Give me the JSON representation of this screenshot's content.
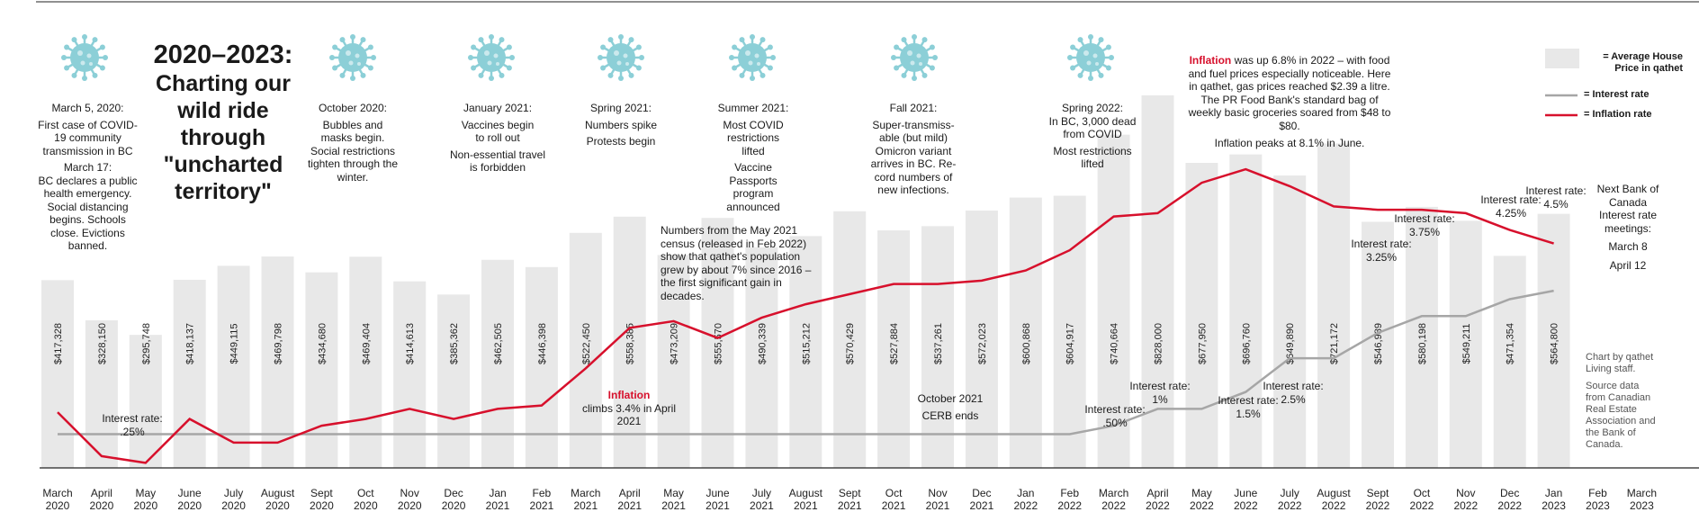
{
  "headline": {
    "line1": "2020–2023:",
    "rest": "Charting our wild ride through \"uncharted territory\""
  },
  "legend": {
    "house": "= Average House Price in qathet",
    "interest": "= Interest rate",
    "inflation": "= Inflation rate"
  },
  "colors": {
    "bar": "#e8e8e8",
    "interest": "#a6a6a6",
    "inflation": "#d7102c",
    "virus": "#8ccfd7"
  },
  "annotations": {
    "march2020a": "March 5, 2020:",
    "march2020b": "First case of COVID-19 community transmission in BC",
    "march2020c": "March 17:",
    "march2020d": "BC declares a public health emergency. Social distancing begins. Schools close. Evictions banned.",
    "oct2020a": "October 2020:",
    "oct2020b": "Bubbles and masks begin. Social restrictions tighten through the winter.",
    "jan2021a": "January 2021:",
    "jan2021b": "Vaccines begin to roll out",
    "jan2021c": "Non-essential travel is forbidden",
    "spring2021a": "Spring 2021:",
    "spring2021b": "Numbers spike",
    "spring2021c": "Protests begin",
    "summer2021a": "Summer 2021:",
    "summer2021b": "Most COVID restrictions lifted",
    "summer2021c": "Vaccine Passports program announced",
    "fall2021a": "Fall 2021:",
    "fall2021b": "Super-transmiss-able (but mild) Omicron variant arrives in BC. Re-cord numbers of new infections.",
    "spring2022a": "Spring 2022:",
    "spring2022b": "In BC, 3,000 dead from COVID",
    "spring2022c": "Most restrictions lifted",
    "census": "Numbers from the May 2021 census (released in Feb 2022) show that qathet's population grew by about 7% since 2016 – the first significant gain in decades.",
    "inflation2021a": "Inflation",
    "inflation2021b": "climbs 3.4% in April 2021",
    "cerb1": "October 2021",
    "cerb2": "CERB ends",
    "inflation2022a": "Inflation",
    "inflation2022b": "was up 6.8% in 2022 – with food and fuel prices especially noticeable. Here in qathet, gas prices reached $2.39 a litre. The PR Food Bank's standard bag of weekly basic groceries soared from $48 to $80.",
    "inflation2022c": "Inflation peaks at 8.1% in June.",
    "nextbank1": "Next Bank of Canada Interest rate meetings:",
    "nextbank2": "March 8",
    "nextbank3": "April 12",
    "credit1": "Chart by qathet Living staff.",
    "credit2": "Source data from Canadian Real Estate Association and the Bank of Canada."
  },
  "interest_labels": [
    {
      "title": "Interest rate:",
      "value": ".25%"
    },
    {
      "title": "Interest rate:",
      "value": ".50%"
    },
    {
      "title": "Interest rate:",
      "value": "1%"
    },
    {
      "title": "Interest rate:",
      "value": "1.5%"
    },
    {
      "title": "Interest rate:",
      "value": "2.5%"
    },
    {
      "title": "Interest rate:",
      "value": "3.25%"
    },
    {
      "title": "Interest rate:",
      "value": "3.75%"
    },
    {
      "title": "Interest rate:",
      "value": "4.25%"
    },
    {
      "title": "Interest rate:",
      "value": "4.5%"
    }
  ],
  "chart_data": {
    "type": "bar",
    "categories": [
      "March 2020",
      "April 2020",
      "May 2020",
      "June 2020",
      "July 2020",
      "August 2020",
      "Sept 2020",
      "Oct 2020",
      "Nov 2020",
      "Dec 2020",
      "Jan 2021",
      "Feb 2021",
      "March 2021",
      "April 2021",
      "May 2021",
      "June 2021",
      "July 2021",
      "August 2021",
      "Sept 2021",
      "Oct 2021",
      "Nov 2021",
      "Dec 2021",
      "Jan 2022",
      "Feb 2022",
      "March 2022",
      "April 2022",
      "May 2022",
      "June 2022",
      "July 2022",
      "August 2022",
      "Sept 2022",
      "Oct 2022",
      "Nov 2022",
      "Dec 2022",
      "Jan 2023",
      "Feb 2023",
      "March 2023"
    ],
    "series": [
      {
        "name": "Average House Price in qathet",
        "values": [
          417328,
          328150,
          295748,
          418137,
          449115,
          469798,
          434680,
          469404,
          414613,
          385362,
          462505,
          446398,
          522450,
          558385,
          473209,
          555570,
          490339,
          515212,
          570429,
          527884,
          537261,
          572023,
          600868,
          604917,
          740664,
          828000,
          677950,
          696760,
          649890,
          721172,
          546989,
          580198,
          549211,
          471354,
          564800,
          null,
          null
        ],
        "labels": [
          "$417,328",
          "$328,150",
          "$295,748",
          "$418,137",
          "$449,115",
          "$469,798",
          "$434,680",
          "$469,404",
          "$414,613",
          "$385,362",
          "$462,505",
          "$446,398",
          "$522,450",
          "$558,385",
          "$473,209",
          "$555,570",
          "$490,339",
          "$515,212",
          "$570,429",
          "$527,884",
          "$537,261",
          "$572,023",
          "$600,868",
          "$604,917",
          "$740,664",
          "$828,000",
          "$677,950",
          "$696,760",
          "$649,890",
          "$721,172",
          "$546,989",
          "$580,198",
          "$549,211",
          "$471,354",
          "$564,800",
          "",
          ""
        ]
      },
      {
        "name": "Interest rate",
        "values": [
          0.25,
          0.25,
          0.25,
          0.25,
          0.25,
          0.25,
          0.25,
          0.25,
          0.25,
          0.25,
          0.25,
          0.25,
          0.25,
          0.25,
          0.25,
          0.25,
          0.25,
          0.25,
          0.25,
          0.25,
          0.25,
          0.25,
          0.25,
          0.25,
          0.5,
          1,
          1,
          1.5,
          2.5,
          2.5,
          3.25,
          3.75,
          3.75,
          4.25,
          4.5,
          null,
          null
        ]
      },
      {
        "name": "Inflation rate",
        "values": [
          0.9,
          -0.4,
          -0.6,
          0.7,
          0.0,
          0.0,
          0.5,
          0.7,
          1.0,
          0.7,
          1.0,
          1.1,
          2.2,
          3.4,
          3.6,
          3.1,
          3.7,
          4.1,
          4.4,
          4.7,
          4.7,
          4.8,
          5.1,
          5.7,
          6.7,
          6.8,
          7.7,
          8.1,
          7.6,
          7.0,
          6.9,
          6.9,
          6.8,
          6.3,
          5.9,
          null,
          null
        ]
      }
    ],
    "ylim_price": [
      0,
      1000000
    ],
    "ylim_rate": [
      -1,
      10
    ],
    "legend": "top-right",
    "grid": false
  }
}
